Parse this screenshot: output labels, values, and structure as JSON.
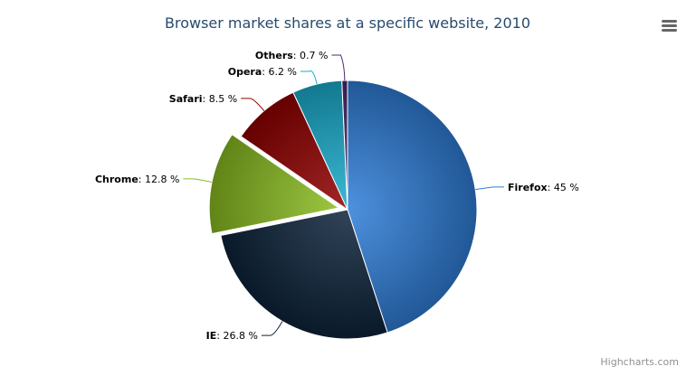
{
  "chart_data": {
    "type": "pie",
    "title": "Browser market shares at a specific website, 2010",
    "unit": "%",
    "slices": [
      {
        "name": "Firefox",
        "value": 45.0,
        "color": "#2f7ed8"
      },
      {
        "name": "IE",
        "value": 26.8,
        "color": "#0d233a"
      },
      {
        "name": "Chrome",
        "value": 12.8,
        "color": "#8bbc21",
        "sliced": true
      },
      {
        "name": "Safari",
        "value": 8.5,
        "color": "#910000"
      },
      {
        "name": "Opera",
        "value": 6.2,
        "color": "#1aadce"
      },
      {
        "name": "Others",
        "value": 0.7,
        "color": "#492970"
      }
    ],
    "label_format": "{name}: {value} %"
  },
  "credits": "Highcharts.com",
  "menu_icon": "hamburger-menu-icon"
}
